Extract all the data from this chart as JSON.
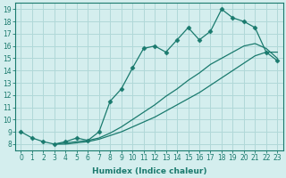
{
  "xlabel": "Humidex (Indice chaleur)",
  "ylabel": "",
  "bg_color": "#d4eeee",
  "grid_color": "#b0d8d8",
  "line_color": "#1a7a6e",
  "xlim": [
    -0.5,
    23.5
  ],
  "ylim": [
    7.5,
    19.5
  ],
  "xticks": [
    0,
    1,
    2,
    3,
    4,
    5,
    6,
    7,
    8,
    9,
    10,
    11,
    12,
    13,
    14,
    15,
    16,
    17,
    18,
    19,
    20,
    21,
    22,
    23
  ],
  "yticks": [
    8,
    9,
    10,
    11,
    12,
    13,
    14,
    15,
    16,
    17,
    18,
    19
  ],
  "main_x": [
    0,
    1,
    2,
    3,
    4,
    5,
    6,
    7,
    8,
    9,
    10,
    11,
    12,
    13,
    14,
    15,
    16,
    17,
    18,
    19,
    20,
    21,
    22,
    23
  ],
  "main_y": [
    9.0,
    8.5,
    8.2,
    8.0,
    8.2,
    8.5,
    8.3,
    9.0,
    11.5,
    12.5,
    14.2,
    15.8,
    16.0,
    15.5,
    16.5,
    17.5,
    16.5,
    17.2,
    19.0,
    18.3,
    18.0,
    17.5,
    15.5,
    14.8
  ],
  "line1_x": [
    3,
    4,
    5,
    6,
    7,
    8,
    9,
    10,
    11,
    12,
    13,
    14,
    15,
    16,
    17,
    18,
    19,
    20,
    21,
    22,
    23
  ],
  "line1_y": [
    8.0,
    8.0,
    8.1,
    8.2,
    8.4,
    8.7,
    9.0,
    9.4,
    9.8,
    10.2,
    10.7,
    11.2,
    11.7,
    12.2,
    12.8,
    13.4,
    14.0,
    14.6,
    15.2,
    15.5,
    15.5
  ],
  "line2_x": [
    3,
    4,
    5,
    6,
    7,
    8,
    9,
    10,
    11,
    12,
    13,
    14,
    15,
    16,
    17,
    18,
    19,
    20,
    21,
    22,
    23
  ],
  "line2_y": [
    8.0,
    8.1,
    8.2,
    8.3,
    8.5,
    8.9,
    9.4,
    10.0,
    10.6,
    11.2,
    11.9,
    12.5,
    13.2,
    13.8,
    14.5,
    15.0,
    15.5,
    16.0,
    16.2,
    15.8,
    15.0
  ]
}
